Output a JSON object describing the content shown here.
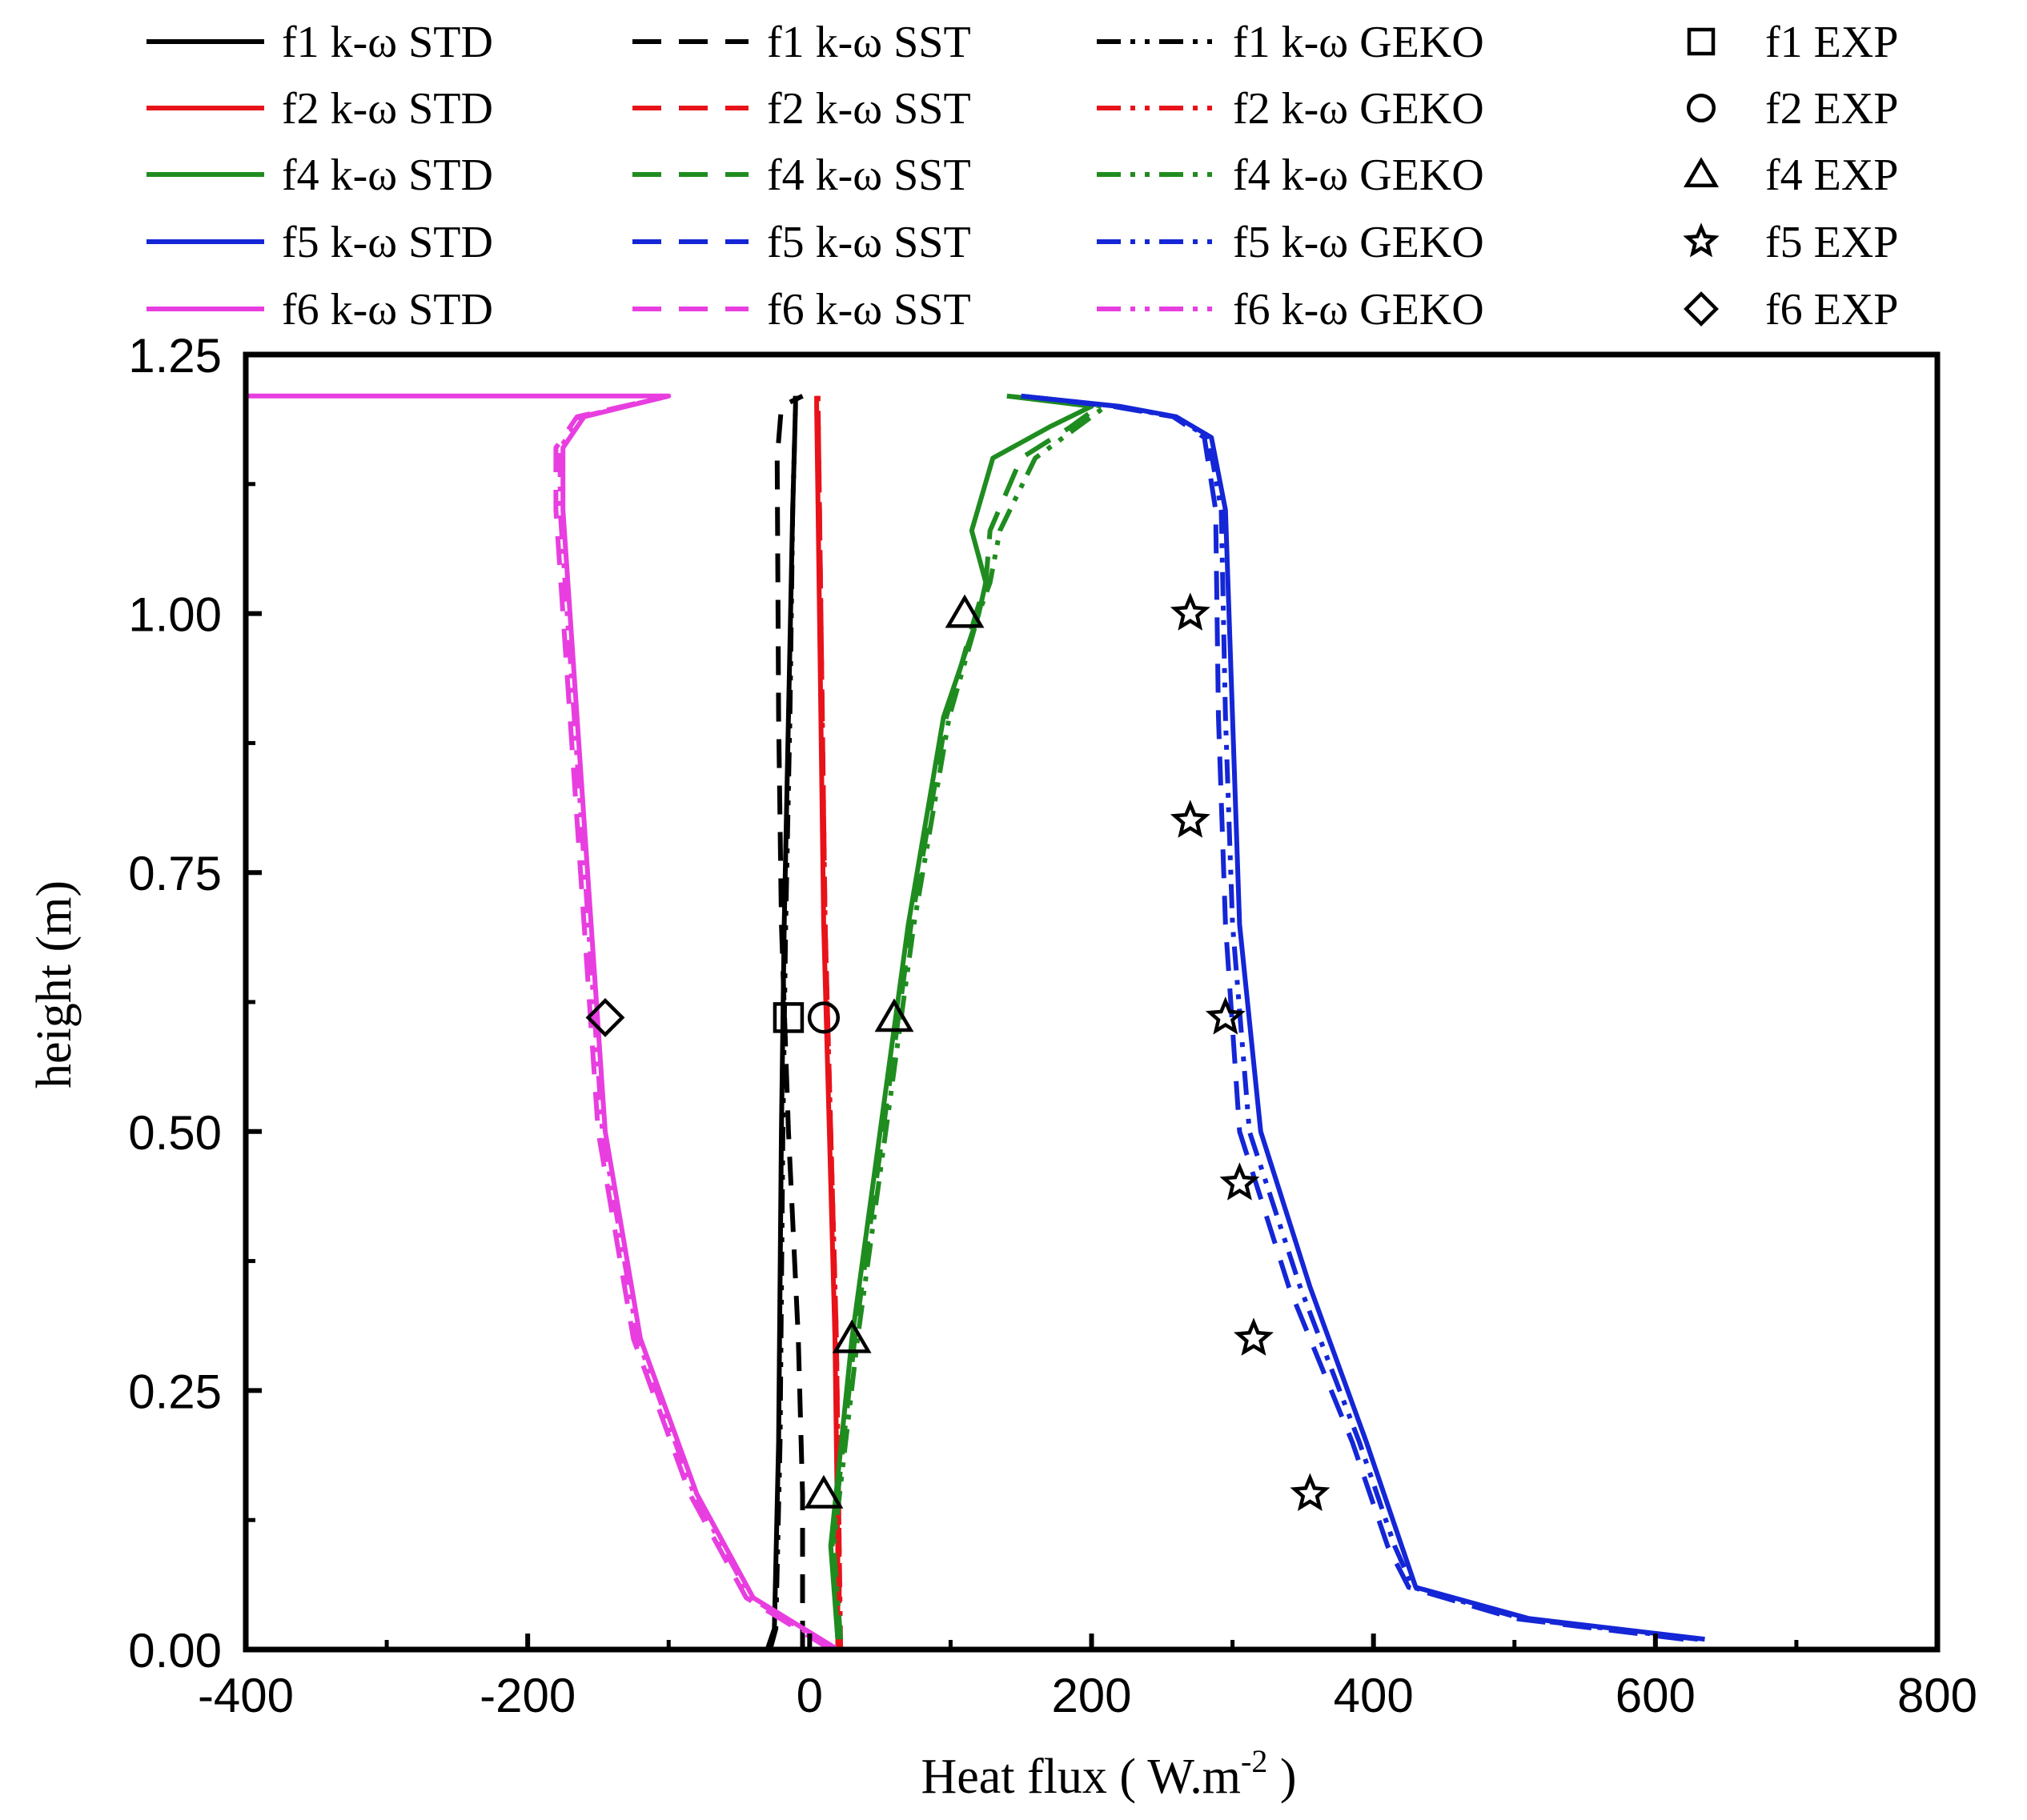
{
  "chart_data": {
    "type": "line",
    "title": "",
    "xlabel": "Heat flux ( W.m",
    "xlabel_sup": "-2",
    "xlabel_suffix": " )",
    "ylabel": "height (m)",
    "xlim": [
      -400,
      800
    ],
    "ylim": [
      0,
      1.25
    ],
    "xticks": [
      -400,
      -200,
      0,
      200,
      400,
      600,
      800
    ],
    "xtick_labels": [
      "-400",
      "-200",
      "0",
      "200",
      "400",
      "600",
      "800"
    ],
    "yticks": [
      0,
      0.25,
      0.5,
      0.75,
      1.0,
      1.25
    ],
    "ytick_labels": [
      "0.00",
      "0.25",
      "0.50",
      "0.75",
      "1.00",
      "1.25"
    ],
    "grid": false,
    "legend_position": "top",
    "colors": {
      "f1": "#000000",
      "f2": "#e8131a",
      "f4": "#1f8c1f",
      "f5": "#1426d6",
      "f6": "#e83ee0"
    },
    "series": [
      {
        "name": "f1 k-ω STD",
        "facade": "f1",
        "model": "STD",
        "style": "solid",
        "x": [
          -30,
          -25,
          -22,
          -20,
          -18,
          -15,
          -12,
          -10,
          -10
        ],
        "y": [
          0.0,
          0.02,
          0.2,
          0.5,
          0.7,
          0.9,
          1.1,
          1.2,
          1.21
        ]
      },
      {
        "name": "f1 k-ω SST",
        "facade": "f1",
        "model": "SST",
        "style": "dashed",
        "x": [
          -5,
          -5,
          -8,
          -15,
          -20,
          -22,
          -23,
          -20,
          -5
        ],
        "y": [
          0.0,
          0.15,
          0.3,
          0.5,
          0.7,
          0.9,
          1.15,
          1.2,
          1.21
        ]
      },
      {
        "name": "f1 k-ω GEKO",
        "facade": "f1",
        "model": "GEKO",
        "style": "dashdot",
        "x": [
          -28,
          -24,
          -21,
          -19,
          -17,
          -14,
          -12,
          -10,
          -10
        ],
        "y": [
          0.0,
          0.02,
          0.2,
          0.5,
          0.7,
          0.9,
          1.1,
          1.2,
          1.21
        ]
      },
      {
        "name": "f2 k-ω STD",
        "facade": "f2",
        "model": "STD",
        "style": "solid",
        "x": [
          20,
          20,
          18,
          14,
          10,
          8,
          6,
          5,
          5
        ],
        "y": [
          0.0,
          0.1,
          0.3,
          0.5,
          0.7,
          0.9,
          1.1,
          1.2,
          1.21
        ]
      },
      {
        "name": "f2 k-ω SST",
        "facade": "f2",
        "model": "SST",
        "style": "dashed",
        "x": [
          21,
          21,
          19,
          15,
          11,
          9,
          7,
          6,
          6
        ],
        "y": [
          0.0,
          0.1,
          0.3,
          0.5,
          0.7,
          0.9,
          1.1,
          1.2,
          1.21
        ]
      },
      {
        "name": "f2 k-ω GEKO",
        "facade": "f2",
        "model": "GEKO",
        "style": "dashdot",
        "x": [
          22,
          21,
          19,
          15,
          11,
          9,
          7,
          6,
          6
        ],
        "y": [
          0.0,
          0.1,
          0.3,
          0.5,
          0.7,
          0.9,
          1.1,
          1.2,
          1.21
        ]
      },
      {
        "name": "f4 k-ω STD",
        "facade": "f4",
        "model": "STD",
        "style": "solid",
        "x": [
          20,
          15,
          30,
          50,
          70,
          95,
          120,
          125,
          115,
          130,
          170,
          200,
          140
        ],
        "y": [
          0.01,
          0.1,
          0.3,
          0.5,
          0.7,
          0.9,
          1.0,
          1.03,
          1.08,
          1.15,
          1.18,
          1.2,
          1.21
        ]
      },
      {
        "name": "f4 k-ω SST",
        "facade": "f4",
        "model": "SST",
        "style": "dashed",
        "x": [
          20,
          16,
          32,
          52,
          72,
          97,
          118,
          125,
          128,
          150,
          185,
          205,
          140
        ],
        "y": [
          0.01,
          0.1,
          0.3,
          0.5,
          0.7,
          0.9,
          1.0,
          1.03,
          1.08,
          1.15,
          1.18,
          1.2,
          1.21
        ]
      },
      {
        "name": "f4 k-ω GEKO",
        "facade": "f4",
        "model": "GEKO",
        "style": "dashdot",
        "x": [
          22,
          17,
          34,
          54,
          74,
          99,
          120,
          128,
          135,
          160,
          190,
          210,
          140
        ],
        "y": [
          0.01,
          0.1,
          0.3,
          0.5,
          0.7,
          0.9,
          1.0,
          1.03,
          1.08,
          1.15,
          1.18,
          1.2,
          1.21
        ]
      },
      {
        "name": "f5 k-ω STD",
        "facade": "f5",
        "model": "STD",
        "style": "solid",
        "x": [
          635,
          510,
          430,
          420,
          395,
          355,
          320,
          305,
          300,
          295,
          285,
          260,
          220,
          150
        ],
        "y": [
          0.01,
          0.03,
          0.06,
          0.1,
          0.2,
          0.35,
          0.5,
          0.7,
          0.9,
          1.1,
          1.17,
          1.19,
          1.2,
          1.21
        ]
      },
      {
        "name": "f5 k-ω SST",
        "facade": "f5",
        "model": "SST",
        "style": "dashed",
        "x": [
          620,
          500,
          425,
          410,
          385,
          340,
          305,
          295,
          290,
          288,
          280,
          258,
          215,
          150
        ],
        "y": [
          0.01,
          0.03,
          0.06,
          0.1,
          0.2,
          0.35,
          0.5,
          0.7,
          0.9,
          1.1,
          1.17,
          1.19,
          1.2,
          1.21
        ]
      },
      {
        "name": "f5 k-ω GEKO",
        "facade": "f5",
        "model": "GEKO",
        "style": "dashdot",
        "x": [
          630,
          505,
          428,
          415,
          390,
          348,
          312,
          300,
          295,
          292,
          283,
          259,
          218,
          150
        ],
        "y": [
          0.01,
          0.03,
          0.06,
          0.1,
          0.2,
          0.35,
          0.5,
          0.7,
          0.9,
          1.1,
          1.17,
          1.19,
          1.2,
          1.21
        ]
      },
      {
        "name": "f6 k-ω STD",
        "facade": "f6",
        "model": "STD",
        "style": "solid",
        "x": [
          20,
          -40,
          -80,
          -120,
          -145,
          -155,
          -165,
          -175,
          -175,
          -160,
          -100,
          -400
        ],
        "y": [
          0.0,
          0.05,
          0.15,
          0.3,
          0.5,
          0.7,
          0.9,
          1.1,
          1.16,
          1.19,
          1.21,
          1.21
        ]
      },
      {
        "name": "f6 k-ω SST",
        "facade": "f6",
        "model": "SST",
        "style": "dashed",
        "x": [
          15,
          -45,
          -85,
          -125,
          -150,
          -160,
          -170,
          -180,
          -180,
          -165,
          -100
        ],
        "y": [
          0.0,
          0.05,
          0.15,
          0.3,
          0.5,
          0.7,
          0.9,
          1.1,
          1.16,
          1.19,
          1.21
        ]
      },
      {
        "name": "f6 k-ω GEKO",
        "facade": "f6",
        "model": "GEKO",
        "style": "dashdot",
        "x": [
          18,
          -42,
          -82,
          -122,
          -147,
          -157,
          -167,
          -177,
          -177,
          -162,
          -100
        ],
        "y": [
          0.0,
          0.05,
          0.15,
          0.3,
          0.5,
          0.7,
          0.9,
          1.1,
          1.16,
          1.19,
          1.21
        ]
      }
    ],
    "experimental": [
      {
        "name": "f1 EXP",
        "facade": "f1",
        "marker": "square",
        "points": [
          {
            "x": -15,
            "y": 0.61
          }
        ]
      },
      {
        "name": "f2 EXP",
        "facade": "f2",
        "marker": "circle",
        "points": [
          {
            "x": 10,
            "y": 0.61
          }
        ]
      },
      {
        "name": "f4 EXP",
        "facade": "f4",
        "marker": "triangle",
        "points": [
          {
            "x": 10,
            "y": 0.15
          },
          {
            "x": 30,
            "y": 0.3
          },
          {
            "x": 60,
            "y": 0.61
          },
          {
            "x": 110,
            "y": 1.0
          }
        ]
      },
      {
        "name": "f5 EXP",
        "facade": "f5",
        "marker": "star",
        "points": [
          {
            "x": 355,
            "y": 0.15
          },
          {
            "x": 315,
            "y": 0.3
          },
          {
            "x": 305,
            "y": 0.45
          },
          {
            "x": 295,
            "y": 0.61
          },
          {
            "x": 270,
            "y": 0.8
          },
          {
            "x": 270,
            "y": 1.0
          }
        ]
      },
      {
        "name": "f6 EXP",
        "facade": "f6",
        "marker": "diamond",
        "points": [
          {
            "x": -145,
            "y": 0.61
          }
        ]
      }
    ],
    "legend": {
      "columns": [
        [
          "f1 k-ω STD",
          "f2 k-ω STD",
          "f4 k-ω STD",
          "f5 k-ω STD",
          "f6 k-ω STD"
        ],
        [
          "f1 k-ω SST",
          "f2 k-ω SST",
          "f4 k-ω SST",
          "f5 k-ω SST",
          "f6 k-ω SST"
        ],
        [
          "f1 k-ω GEKO",
          "f2 k-ω GEKO",
          "f4 k-ω GEKO",
          "f5 k-ω GEKO",
          "f6 k-ω GEKO"
        ],
        [
          "f1 EXP",
          "f2 EXP",
          "f4 EXP",
          "f5 EXP",
          "f6 EXP"
        ]
      ]
    }
  }
}
